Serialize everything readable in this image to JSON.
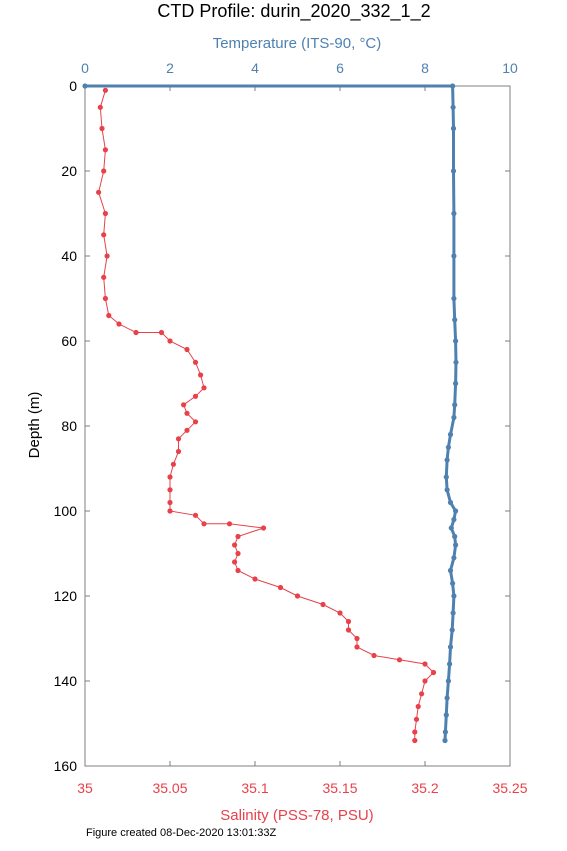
{
  "chart_data": {
    "type": "scatter",
    "title": "CTD Profile: durin_2020_332_1_2",
    "top_axis": {
      "label": "Temperature (ITS-90, °C)",
      "range": [
        0,
        10
      ],
      "ticks": [
        "0",
        "2",
        "4",
        "6",
        "8",
        "10"
      ],
      "color": "#4f81b0"
    },
    "bottom_axis": {
      "label": "Salinity (PSS-78, PSU)",
      "range": [
        35,
        35.25
      ],
      "ticks": [
        "35",
        "35.05",
        "35.1",
        "35.15",
        "35.2",
        "35.25"
      ],
      "color": "#e8414a"
    },
    "y_axis": {
      "label": "Depth (m)",
      "range": [
        0,
        160
      ],
      "inverted": true,
      "ticks": [
        "0",
        "20",
        "40",
        "60",
        "80",
        "100",
        "120",
        "140",
        "160"
      ]
    },
    "series": [
      {
        "name": "Temperature",
        "axis": "top",
        "color": "#4f81b0",
        "points": [
          [
            0,
            0
          ],
          [
            8.65,
            0
          ],
          [
            8.66,
            5
          ],
          [
            8.67,
            10
          ],
          [
            8.67,
            20
          ],
          [
            8.68,
            30
          ],
          [
            8.68,
            40
          ],
          [
            8.68,
            50
          ],
          [
            8.7,
            55
          ],
          [
            8.72,
            60
          ],
          [
            8.73,
            65
          ],
          [
            8.72,
            70
          ],
          [
            8.7,
            75
          ],
          [
            8.68,
            78
          ],
          [
            8.6,
            82
          ],
          [
            8.55,
            85
          ],
          [
            8.52,
            88
          ],
          [
            8.5,
            92
          ],
          [
            8.52,
            95
          ],
          [
            8.6,
            98
          ],
          [
            8.72,
            100
          ],
          [
            8.68,
            102
          ],
          [
            8.62,
            104
          ],
          [
            8.7,
            106
          ],
          [
            8.72,
            108
          ],
          [
            8.68,
            111
          ],
          [
            8.6,
            114
          ],
          [
            8.65,
            117
          ],
          [
            8.68,
            120
          ],
          [
            8.66,
            124
          ],
          [
            8.64,
            128
          ],
          [
            8.6,
            132
          ],
          [
            8.58,
            136
          ],
          [
            8.55,
            140
          ],
          [
            8.52,
            144
          ],
          [
            8.5,
            148
          ],
          [
            8.48,
            152
          ],
          [
            8.47,
            154
          ]
        ]
      },
      {
        "name": "Salinity",
        "axis": "bottom",
        "color": "#e8414a",
        "points": [
          [
            35.012,
            1
          ],
          [
            35.009,
            5
          ],
          [
            35.01,
            10
          ],
          [
            35.012,
            15
          ],
          [
            35.011,
            20
          ],
          [
            35.008,
            25
          ],
          [
            35.012,
            30
          ],
          [
            35.011,
            35
          ],
          [
            35.013,
            40
          ],
          [
            35.011,
            45
          ],
          [
            35.012,
            50
          ],
          [
            35.014,
            54
          ],
          [
            35.02,
            56
          ],
          [
            35.03,
            58
          ],
          [
            35.045,
            58
          ],
          [
            35.05,
            60
          ],
          [
            35.06,
            62
          ],
          [
            35.065,
            65
          ],
          [
            35.068,
            68
          ],
          [
            35.07,
            71
          ],
          [
            35.065,
            73
          ],
          [
            35.058,
            75
          ],
          [
            35.06,
            77
          ],
          [
            35.065,
            79
          ],
          [
            35.06,
            81
          ],
          [
            35.055,
            83
          ],
          [
            35.055,
            86
          ],
          [
            35.052,
            89
          ],
          [
            35.05,
            92
          ],
          [
            35.05,
            95
          ],
          [
            35.05,
            98
          ],
          [
            35.05,
            100
          ],
          [
            35.065,
            101
          ],
          [
            35.07,
            103
          ],
          [
            35.085,
            103
          ],
          [
            35.105,
            104
          ],
          [
            35.09,
            106
          ],
          [
            35.088,
            108
          ],
          [
            35.09,
            110
          ],
          [
            35.088,
            112
          ],
          [
            35.09,
            114
          ],
          [
            35.1,
            116
          ],
          [
            35.115,
            118
          ],
          [
            35.125,
            120
          ],
          [
            35.14,
            122
          ],
          [
            35.15,
            124
          ],
          [
            35.155,
            126
          ],
          [
            35.155,
            128
          ],
          [
            35.16,
            130
          ],
          [
            35.16,
            132
          ],
          [
            35.17,
            134
          ],
          [
            35.185,
            135
          ],
          [
            35.2,
            136
          ],
          [
            35.205,
            138
          ],
          [
            35.2,
            140
          ],
          [
            35.198,
            143
          ],
          [
            35.196,
            146
          ],
          [
            35.195,
            149
          ],
          [
            35.194,
            152
          ],
          [
            35.194,
            154
          ]
        ]
      }
    ],
    "grid": false
  },
  "footer": "Figure created 08-Dec-2020 13:01:33Z"
}
